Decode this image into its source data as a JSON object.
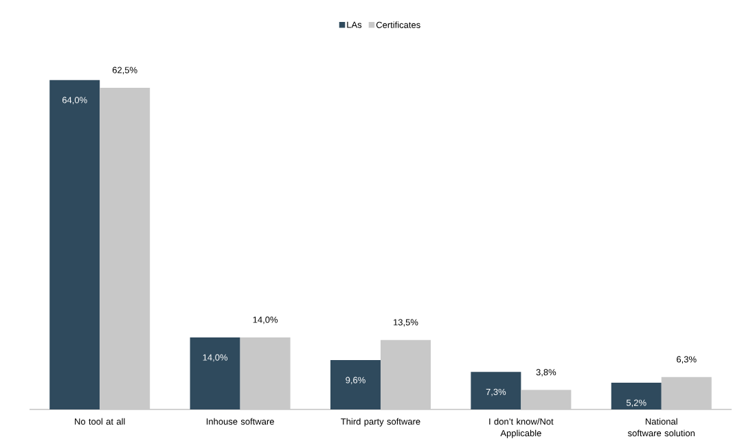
{
  "chart_data": {
    "type": "bar",
    "categories": [
      "No tool at all",
      "Inhouse software",
      "Third party software",
      "I don’t know/Not Applicable",
      "National software solution"
    ],
    "series": [
      {
        "name": "LAs",
        "color": "#2f4a5d",
        "values": [
          64.0,
          14.0,
          9.6,
          7.3,
          5.2
        ],
        "value_labels": [
          "64,0%",
          "14,0%",
          "9,6%",
          "7,3%",
          "5,2%"
        ]
      },
      {
        "name": "Certificates",
        "color": "#c8c8c8",
        "values": [
          62.5,
          14.0,
          13.5,
          3.8,
          6.3
        ],
        "value_labels": [
          "62,5%",
          "14,0%",
          "13,5%",
          "3,8%",
          "6,3%"
        ]
      }
    ],
    "legend": "top"
  }
}
